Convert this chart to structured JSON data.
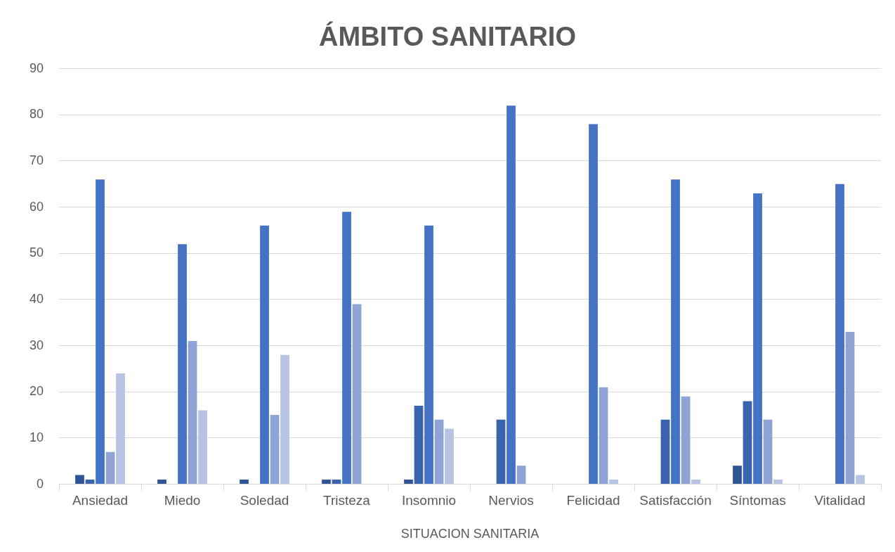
{
  "chart_data": {
    "type": "bar",
    "title": "ÁMBITO SANITARIO",
    "xlabel": "SITUACION SANITARIA",
    "categories": [
      "Ansiedad",
      "Miedo",
      "Soledad",
      "Tristeza",
      "Insomnio",
      "Nervios",
      "Felicidad",
      "Satisfacción",
      "Síntomas",
      "Vitalidad"
    ],
    "series": [
      {
        "color": "#2f5597",
        "values": [
          2,
          1,
          1,
          1,
          1,
          0,
          0,
          0,
          4,
          0
        ]
      },
      {
        "color": "#3a64ad",
        "values": [
          1,
          0,
          0,
          1,
          17,
          14,
          0,
          14,
          18,
          0
        ]
      },
      {
        "color": "#4472c4",
        "values": [
          66,
          52,
          56,
          59,
          56,
          82,
          78,
          66,
          63,
          65
        ]
      },
      {
        "color": "#8fa4d4",
        "values": [
          7,
          31,
          15,
          39,
          14,
          4,
          21,
          19,
          14,
          33
        ]
      },
      {
        "color": "#b7c3e3",
        "values": [
          24,
          16,
          28,
          0,
          12,
          0,
          1,
          1,
          1,
          2
        ]
      }
    ],
    "ylim": [
      0,
      90
    ],
    "yticks": [
      0,
      10,
      20,
      30,
      40,
      50,
      60,
      70,
      80,
      90
    ],
    "grid": "y",
    "legend": false
  }
}
